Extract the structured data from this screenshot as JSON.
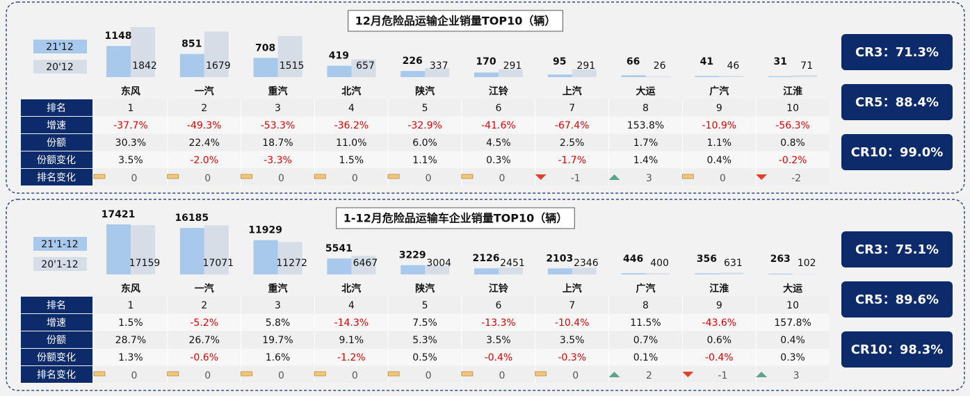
{
  "chart_data": [
    {
      "type": "bar",
      "title": "12月危险品运输企业销量TOP10（辆）",
      "categories": [
        "东风",
        "一汽",
        "重汽",
        "北汽",
        "陕汽",
        "江铃",
        "上汽",
        "大运",
        "广汽",
        "江淮"
      ],
      "series": [
        {
          "name": "21'12",
          "color": "#a9c9ec",
          "values": [
            1148,
            851,
            708,
            419,
            226,
            170,
            95,
            66,
            41,
            31
          ]
        },
        {
          "name": "20'12",
          "color": "#d6dde6",
          "values": [
            1842,
            1679,
            1515,
            657,
            337,
            291,
            291,
            26,
            46,
            71
          ]
        }
      ]
    },
    {
      "type": "bar",
      "title": "1-12月危险品运输车企业销量TOP10（辆）",
      "categories": [
        "东风",
        "一汽",
        "重汽",
        "北汽",
        "陕汽",
        "江铃",
        "上汽",
        "广汽",
        "江淮",
        "大运"
      ],
      "series": [
        {
          "name": "21'1-12",
          "color": "#a9c9ec",
          "values": [
            17421,
            16185,
            11929,
            5541,
            3229,
            2126,
            2103,
            446,
            356,
            263
          ]
        },
        {
          "name": "20'1-12",
          "color": "#d6dde6",
          "values": [
            17159,
            17071,
            11272,
            6467,
            3004,
            2451,
            2346,
            400,
            631,
            102
          ]
        }
      ]
    }
  ],
  "tables": [
    {
      "rows": [
        {
          "label": "排名",
          "cells": [
            "1",
            "2",
            "3",
            "4",
            "5",
            "6",
            "7",
            "8",
            "9",
            "10"
          ]
        },
        {
          "label": "增速",
          "cells": [
            "-37.7%",
            "-49.3%",
            "-53.3%",
            "-36.2%",
            "-32.9%",
            "-41.6%",
            "-67.4%",
            "153.8%",
            "-10.9%",
            "-56.3%"
          ]
        },
        {
          "label": "份额",
          "cells": [
            "30.3%",
            "22.4%",
            "18.7%",
            "11.0%",
            "6.0%",
            "4.5%",
            "2.5%",
            "1.7%",
            "1.1%",
            "0.8%"
          ]
        },
        {
          "label": "份额变化",
          "cells": [
            "3.5%",
            "-2.0%",
            "-3.3%",
            "1.5%",
            "1.1%",
            "0.3%",
            "-1.7%",
            "1.4%",
            "0.4%",
            "-0.2%"
          ]
        },
        {
          "label": "排名变化",
          "cells": [
            "0",
            "0",
            "0",
            "0",
            "0",
            "0",
            "-1",
            "3",
            "0",
            "-2"
          ]
        }
      ]
    },
    {
      "rows": [
        {
          "label": "排名",
          "cells": [
            "1",
            "2",
            "3",
            "4",
            "5",
            "6",
            "7",
            "8",
            "9",
            "10"
          ]
        },
        {
          "label": "增速",
          "cells": [
            "1.5%",
            "-5.2%",
            "5.8%",
            "-14.3%",
            "7.5%",
            "-13.3%",
            "-10.4%",
            "11.5%",
            "-43.6%",
            "157.8%"
          ]
        },
        {
          "label": "份额",
          "cells": [
            "28.7%",
            "26.7%",
            "19.7%",
            "9.1%",
            "5.3%",
            "3.5%",
            "3.5%",
            "0.7%",
            "0.6%",
            "0.4%"
          ]
        },
        {
          "label": "份额变化",
          "cells": [
            "1.3%",
            "-0.6%",
            "1.6%",
            "-1.2%",
            "0.5%",
            "-0.4%",
            "-0.3%",
            "0.1%",
            "-0.4%",
            "0.3%"
          ]
        },
        {
          "label": "排名变化",
          "cells": [
            "0",
            "0",
            "0",
            "0",
            "0",
            "0",
            "0",
            "2",
            "-1",
            "3"
          ]
        }
      ]
    }
  ],
  "cr": [
    [
      "CR3：71.3%",
      "CR5：88.4%",
      "CR10：99.0%"
    ],
    [
      "CR3：75.1%",
      "CR5：89.6%",
      "CR10：98.3%"
    ]
  ]
}
